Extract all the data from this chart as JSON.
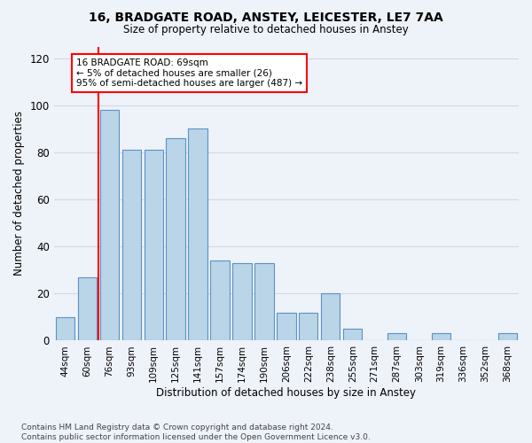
{
  "title1": "16, BRADGATE ROAD, ANSTEY, LEICESTER, LE7 7AA",
  "title2": "Size of property relative to detached houses in Anstey",
  "xlabel": "Distribution of detached houses by size in Anstey",
  "ylabel": "Number of detached properties",
  "categories": [
    "44sqm",
    "60sqm",
    "76sqm",
    "93sqm",
    "109sqm",
    "125sqm",
    "141sqm",
    "157sqm",
    "174sqm",
    "190sqm",
    "206sqm",
    "222sqm",
    "238sqm",
    "255sqm",
    "271sqm",
    "287sqm",
    "303sqm",
    "319sqm",
    "336sqm",
    "352sqm",
    "368sqm"
  ],
  "values": [
    10,
    27,
    98,
    81,
    81,
    86,
    90,
    34,
    33,
    33,
    12,
    12,
    20,
    5,
    0,
    3,
    0,
    3,
    0,
    0,
    3
  ],
  "bar_color": "#bad4e8",
  "bar_edge_color": "#5b92c4",
  "background_color": "#eef2f9",
  "grid_color": "#d0d8e8",
  "annotation_line1": "16 BRADGATE ROAD: 69sqm",
  "annotation_line2": "← 5% of detached houses are smaller (26)",
  "annotation_line3": "95% of semi-detached houses are larger (487) →",
  "vline_position": 1.5,
  "ylim": [
    0,
    125
  ],
  "yticks": [
    0,
    20,
    40,
    60,
    80,
    100,
    120
  ],
  "footer": "Contains HM Land Registry data © Crown copyright and database right 2024.\nContains public sector information licensed under the Open Government Licence v3.0."
}
